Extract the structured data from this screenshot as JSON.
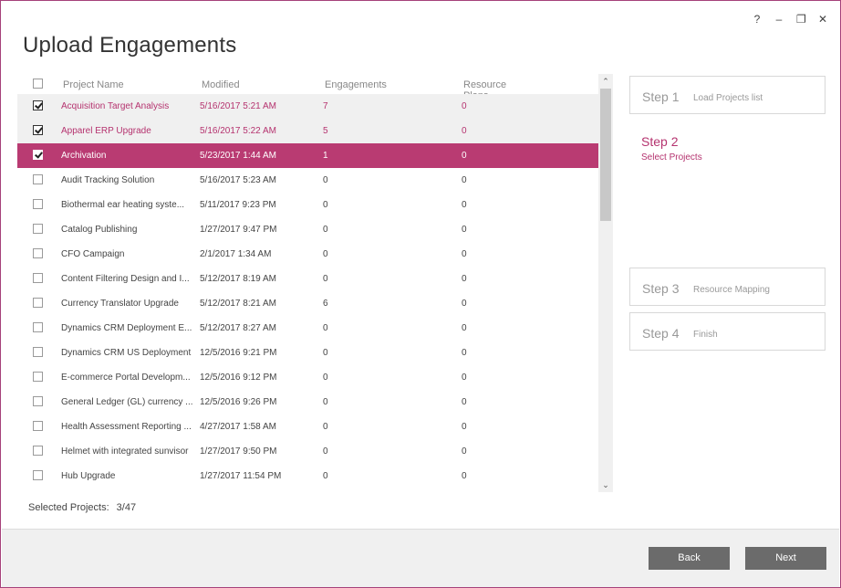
{
  "window": {
    "controls": {
      "help": "?",
      "minimize": "–",
      "restore": "❐",
      "close": "✕"
    }
  },
  "page": {
    "title": "Upload Engagements"
  },
  "grid": {
    "columns": {
      "name": "Project Name",
      "modified": "Modified",
      "engagements": "Engagements",
      "resource_plans": "Resource Plans"
    },
    "rows": [
      {
        "name": "Acquisition Target Analysis",
        "modified": "5/16/2017 5:21 AM",
        "engagements": "7",
        "resource_plans": "0",
        "checked": true
      },
      {
        "name": "Apparel ERP Upgrade",
        "modified": "5/16/2017 5:22 AM",
        "engagements": "5",
        "resource_plans": "0",
        "checked": true
      },
      {
        "name": "Archivation",
        "modified": "5/23/2017 1:44 AM",
        "engagements": "1",
        "resource_plans": "0",
        "checked": true,
        "selected": true
      },
      {
        "name": "Audit Tracking Solution",
        "modified": "5/16/2017 5:23 AM",
        "engagements": "0",
        "resource_plans": "0"
      },
      {
        "name": "Biothermal ear heating syste...",
        "modified": "5/11/2017 9:23 PM",
        "engagements": "0",
        "resource_plans": "0"
      },
      {
        "name": "Catalog Publishing",
        "modified": "1/27/2017 9:47 PM",
        "engagements": "0",
        "resource_plans": "0"
      },
      {
        "name": "CFO Campaign",
        "modified": "2/1/2017 1:34 AM",
        "engagements": "0",
        "resource_plans": "0"
      },
      {
        "name": "Content Filtering Design and I...",
        "modified": "5/12/2017 8:19 AM",
        "engagements": "0",
        "resource_plans": "0"
      },
      {
        "name": "Currency Translator Upgrade",
        "modified": "5/12/2017 8:21 AM",
        "engagements": "6",
        "resource_plans": "0"
      },
      {
        "name": "Dynamics CRM Deployment E...",
        "modified": "5/12/2017 8:27 AM",
        "engagements": "0",
        "resource_plans": "0"
      },
      {
        "name": "Dynamics CRM US Deployment",
        "modified": "12/5/2016 9:21 PM",
        "engagements": "0",
        "resource_plans": "0"
      },
      {
        "name": "E-commerce Portal Developm...",
        "modified": "12/5/2016 9:12 PM",
        "engagements": "0",
        "resource_plans": "0"
      },
      {
        "name": "General Ledger (GL) currency ...",
        "modified": "12/5/2016 9:26 PM",
        "engagements": "0",
        "resource_plans": "0"
      },
      {
        "name": "Health Assessment Reporting ...",
        "modified": "4/27/2017 1:58 AM",
        "engagements": "0",
        "resource_plans": "0"
      },
      {
        "name": "Helmet with integrated sunvisor",
        "modified": "1/27/2017 9:50 PM",
        "engagements": "0",
        "resource_plans": "0"
      },
      {
        "name": "Hub Upgrade",
        "modified": "1/27/2017 11:54 PM",
        "engagements": "0",
        "resource_plans": "0"
      }
    ]
  },
  "scroll": {
    "up": "⌃",
    "down": "⌄"
  },
  "status": {
    "label": "Selected Projects:",
    "value": "3/47"
  },
  "steps": [
    {
      "num": "Step 1",
      "label": "Load Projects list"
    },
    {
      "num": "Step 2",
      "label": "Select Projects"
    },
    {
      "num": "Step 3",
      "label": "Resource Mapping"
    },
    {
      "num": "Step 4",
      "label": "Finish"
    }
  ],
  "footer": {
    "back": "Back",
    "next": "Next"
  }
}
